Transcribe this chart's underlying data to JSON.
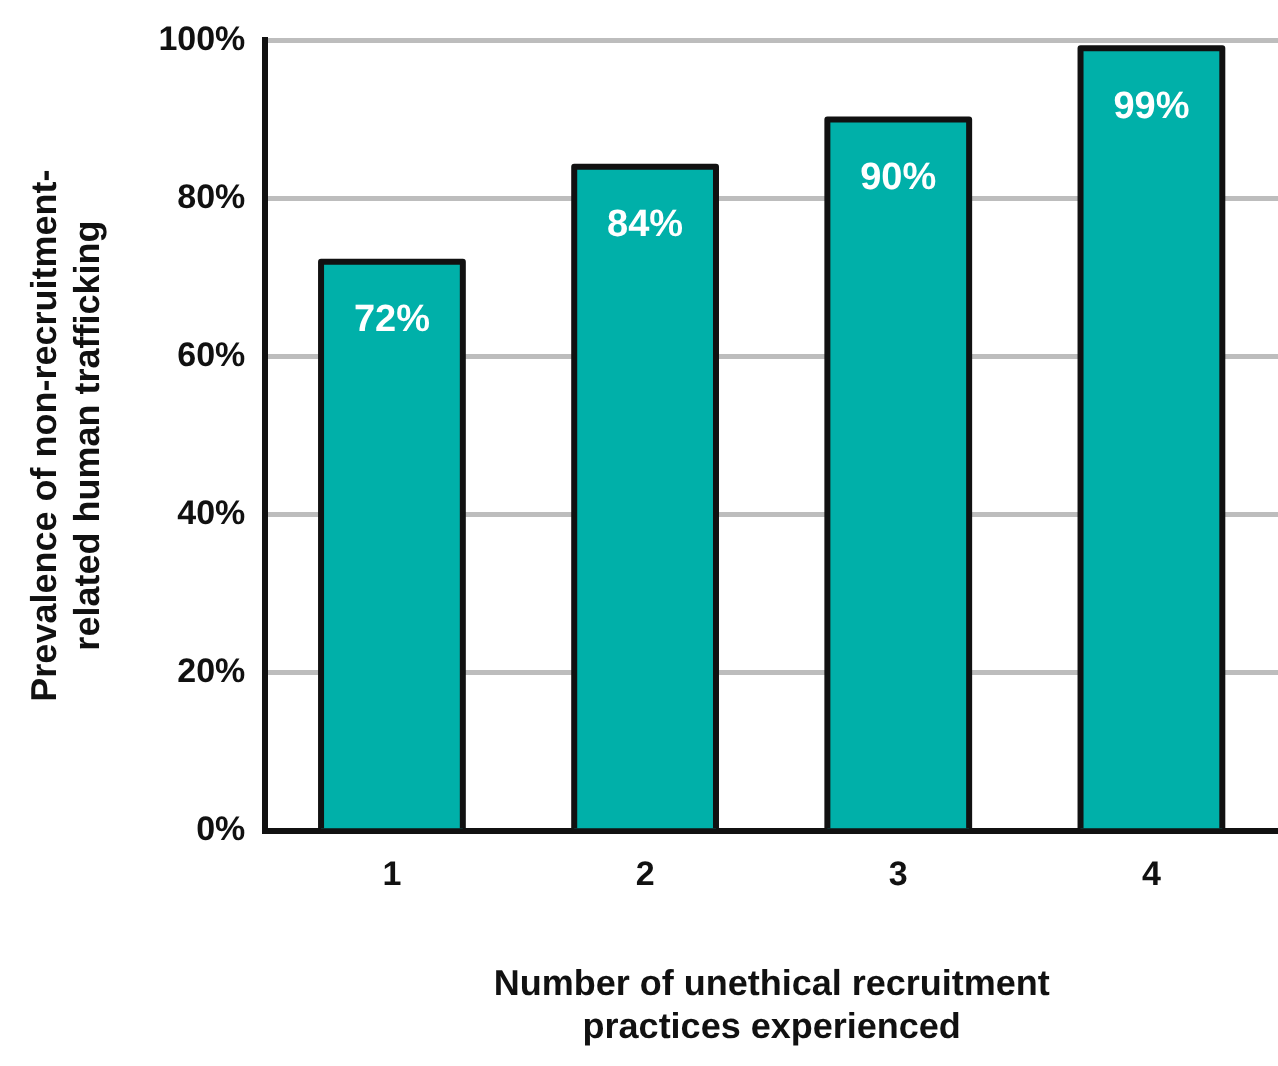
{
  "chart_data": {
    "type": "bar",
    "xlabel": "Number of unethical recruitment\npractices experienced",
    "ylabel": "Prevalence of non-recruitment-\nrelated human trafficking",
    "categories": [
      "1",
      "2",
      "3",
      "4"
    ],
    "values": [
      72,
      84,
      90,
      99
    ],
    "color": "#00b0a9",
    "value_labels": [
      "72%",
      "84%",
      "90%",
      "99%"
    ],
    "ylim": [
      0,
      100
    ],
    "yticks": [
      {
        "value": 0,
        "label": "0%"
      },
      {
        "value": 20,
        "label": "20%"
      },
      {
        "value": 40,
        "label": "40%"
      },
      {
        "value": 60,
        "label": "60%"
      },
      {
        "value": 80,
        "label": "80%"
      },
      {
        "value": 100,
        "label": "100%"
      }
    ],
    "grid": "y",
    "legend": false
  }
}
